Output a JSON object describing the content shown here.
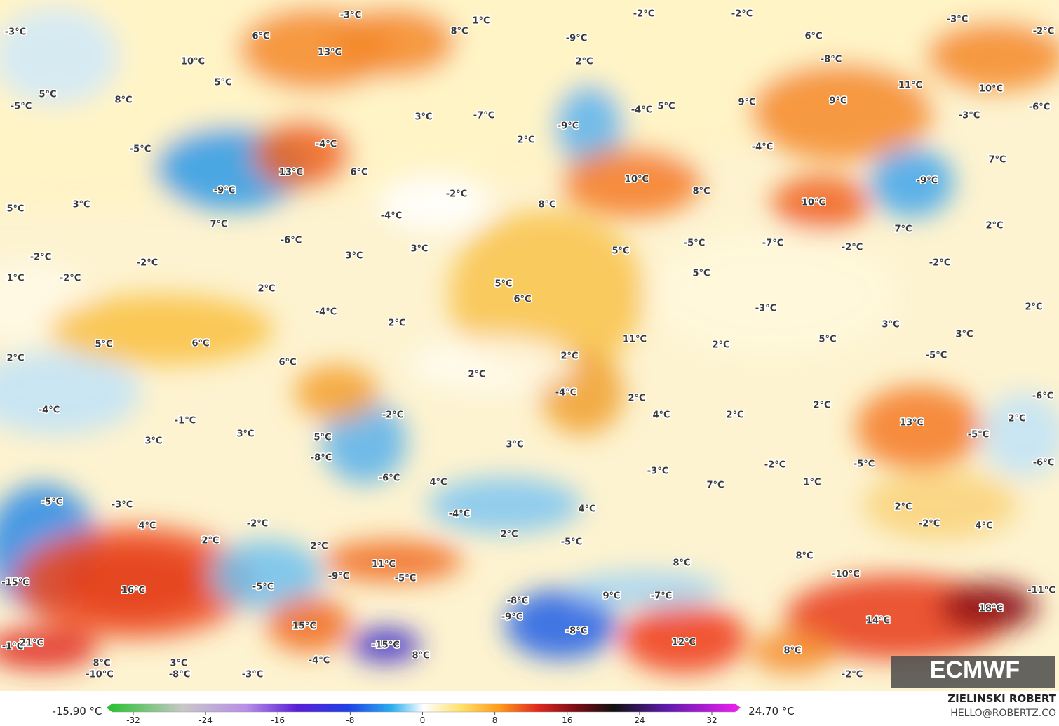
{
  "map": {
    "labels": [
      "-3°C",
      "6°C",
      "-3°C",
      "1°C",
      "8°C",
      "-2°C",
      "-2°C",
      "-3°C",
      "-2°C",
      "6°C",
      "-9°C",
      "13°C",
      "10°C",
      "2°C",
      "-8°C",
      "5°C",
      "5°C",
      "8°C",
      "11°C",
      "10°C",
      "9°C",
      "9°C",
      "-6°C",
      "-5°C",
      "-4°C",
      "5°C",
      "-3°C",
      "-7°C",
      "3°C",
      "-9°C",
      "-4°C",
      "-4°C",
      "2°C",
      "-5°C",
      "7°C",
      "13°C",
      "6°C",
      "10°C",
      "-9°C",
      "-9°C",
      "8°C",
      "-2°C",
      "10°C",
      "5°C",
      "3°C",
      "8°C",
      "-4°C",
      "7°C",
      "7°C",
      "2°C",
      "-6°C",
      "-5°C",
      "-7°C",
      "-2°C",
      "3°C",
      "5°C",
      "-2°C",
      "-2°C",
      "3°C",
      "-2°C",
      "1°C",
      "-2°C",
      "5°C",
      "5°C",
      "2°C",
      "6°C",
      "-3°C",
      "-4°C",
      "2°C",
      "2°C",
      "3°C",
      "3°C",
      "11°C",
      "5°C",
      "6°C",
      "2°C",
      "5°C",
      "2°C",
      "6°C",
      "-5°C",
      "2°C",
      "2°C",
      "-4°C",
      "2°C",
      "-6°C",
      "-4°C",
      "2°C",
      "-2°C",
      "-1°C",
      "2°C",
      "4°C",
      "13°C",
      "2°C",
      "3°C",
      "3°C",
      "5°C",
      "-5°C",
      "3°C",
      "-8°C",
      "-6°C",
      "-2°C",
      "-5°C",
      "-6°C",
      "-3°C",
      "4°C",
      "7°C",
      "1°C",
      "-5°C",
      "-3°C",
      "4°C",
      "-4°C",
      "2°C",
      "-2°C",
      "4°C",
      "2°C",
      "-2°C",
      "4°C",
      "2°C",
      "-5°C",
      "2°C",
      "11°C",
      "8°C",
      "8°C",
      "-10°C",
      "-15°C",
      "16°C",
      "-5°C",
      "-9°C",
      "-5°C",
      "-11°C",
      "9°C",
      "-7°C",
      "-8°C",
      "-9°C",
      "15°C",
      "14°C",
      "18°C",
      "-8°C",
      "12°C",
      "-1°C",
      "21°C",
      "-15°C",
      "8°C",
      "8°C",
      "-4°C",
      "8°C",
      "3°C",
      "-10°C",
      "-8°C",
      "-3°C",
      "-2°C"
    ]
  },
  "colorbar": {
    "min_label": "-15.90 °C",
    "max_label": "24.70 °C",
    "ticks": [
      -32,
      -24,
      -16,
      -8,
      0,
      8,
      16,
      24,
      32
    ]
  },
  "credits": {
    "author": "ZIELINSKI ROBERT",
    "email": "HELLO@ROBERTZ.CO"
  },
  "logo": "ECMWF"
}
